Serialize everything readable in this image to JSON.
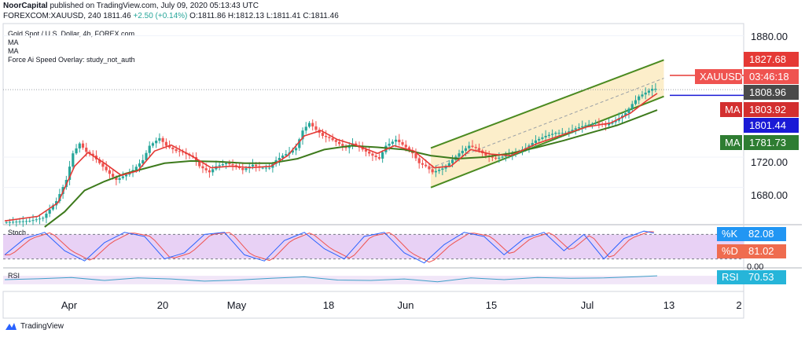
{
  "header": {
    "publisher": "NoorCapital",
    "published_text": "published on TradingView.com, July 09, 2020 05:13:43 UTC",
    "symbol_line": "FOREXCOM:XAUUSD, 240",
    "last": "1811.46",
    "change": "+2.50 (+0.14%)",
    "ohlc": "O:1811.86 H:1812.13 L:1811.41 C:1811.46"
  },
  "legend": {
    "title": "Gold Spot / U.S. Dollar, 4h, FOREX.com",
    "items": [
      "MA",
      "MA",
      "Force Ai Speed Overlay: study_not_auth"
    ]
  },
  "price_tags": [
    {
      "label": "",
      "value": "1880.00",
      "style": "axis"
    },
    {
      "label": "",
      "value": "1827.68",
      "color": "#e53935"
    },
    {
      "label": "XAUUSD",
      "value": "03:46:18",
      "color": "#ef5350"
    },
    {
      "label": "",
      "value": "1808.96",
      "color": "#4a4a4a"
    },
    {
      "label": "MA",
      "value": "1803.92",
      "color": "#d32f2f"
    },
    {
      "label": "",
      "value": "1801.44",
      "color": "#1a1ad6"
    },
    {
      "label": "MA",
      "value": "1781.73",
      "color": "#2e7d32"
    },
    {
      "label": "",
      "value": "1720.00",
      "style": "axis"
    },
    {
      "label": "",
      "value": "1680.00",
      "style": "axis"
    }
  ],
  "chart_data": {
    "type": "candlestick",
    "title": "Gold Spot / U.S. Dollar, 4h, FOREX.com",
    "x_tick_labels": [
      "Apr",
      "20",
      "May",
      "18",
      "Jun",
      "15",
      "Jul",
      "13",
      "2"
    ],
    "y_tick_labels": [
      "1880.00",
      "1720.00",
      "1680.00"
    ],
    "ylim": [
      1631,
      1896
    ],
    "close_path": [
      [
        0,
        1634
      ],
      [
        8,
        1636
      ],
      [
        12,
        1640
      ],
      [
        16,
        1662
      ],
      [
        19,
        1690
      ],
      [
        21,
        1725
      ],
      [
        23,
        1738
      ],
      [
        25,
        1727
      ],
      [
        27,
        1722
      ],
      [
        29,
        1712
      ],
      [
        32,
        1698
      ],
      [
        34,
        1690
      ],
      [
        37,
        1697
      ],
      [
        39,
        1703
      ],
      [
        42,
        1716
      ],
      [
        44,
        1735
      ],
      [
        47,
        1745
      ],
      [
        49,
        1735
      ],
      [
        52,
        1728
      ],
      [
        54,
        1726
      ],
      [
        57,
        1720
      ],
      [
        59,
        1708
      ],
      [
        62,
        1700
      ],
      [
        64,
        1708
      ],
      [
        67,
        1712
      ],
      [
        70,
        1708
      ],
      [
        72,
        1703
      ],
      [
        75,
        1710
      ],
      [
        77,
        1706
      ],
      [
        80,
        1706
      ],
      [
        82,
        1716
      ],
      [
        84,
        1722
      ],
      [
        86,
        1726
      ],
      [
        88,
        1732
      ],
      [
        90,
        1755
      ],
      [
        92,
        1765
      ],
      [
        94,
        1756
      ],
      [
        96,
        1748
      ],
      [
        98,
        1745
      ],
      [
        100,
        1740
      ],
      [
        103,
        1732
      ],
      [
        105,
        1738
      ],
      [
        108,
        1730
      ],
      [
        111,
        1722
      ],
      [
        113,
        1718
      ],
      [
        115,
        1735
      ],
      [
        118,
        1743
      ],
      [
        121,
        1733
      ],
      [
        123,
        1725
      ],
      [
        125,
        1712
      ],
      [
        127,
        1708
      ],
      [
        129,
        1700
      ],
      [
        132,
        1705
      ],
      [
        134,
        1712
      ],
      [
        137,
        1725
      ],
      [
        140,
        1735
      ],
      [
        142,
        1732
      ],
      [
        145,
        1722
      ],
      [
        148,
        1718
      ],
      [
        151,
        1722
      ],
      [
        154,
        1726
      ],
      [
        157,
        1732
      ],
      [
        160,
        1742
      ],
      [
        163,
        1748
      ],
      [
        166,
        1752
      ],
      [
        169,
        1752
      ],
      [
        172,
        1758
      ],
      [
        175,
        1762
      ],
      [
        178,
        1765
      ],
      [
        181,
        1762
      ],
      [
        184,
        1768
      ],
      [
        187,
        1778
      ],
      [
        189,
        1790
      ],
      [
        191,
        1800
      ],
      [
        193,
        1805
      ],
      [
        195,
        1810
      ]
    ],
    "ma_fast": [
      [
        0,
        1636
      ],
      [
        10,
        1642
      ],
      [
        16,
        1660
      ],
      [
        21,
        1708
      ],
      [
        25,
        1726
      ],
      [
        30,
        1712
      ],
      [
        35,
        1696
      ],
      [
        40,
        1702
      ],
      [
        45,
        1728
      ],
      [
        50,
        1736
      ],
      [
        56,
        1722
      ],
      [
        62,
        1706
      ],
      [
        68,
        1708
      ],
      [
        74,
        1706
      ],
      [
        80,
        1708
      ],
      [
        85,
        1722
      ],
      [
        90,
        1748
      ],
      [
        95,
        1755
      ],
      [
        100,
        1743
      ],
      [
        106,
        1735
      ],
      [
        112,
        1725
      ],
      [
        117,
        1735
      ],
      [
        123,
        1728
      ],
      [
        129,
        1706
      ],
      [
        134,
        1708
      ],
      [
        140,
        1730
      ],
      [
        146,
        1724
      ],
      [
        152,
        1722
      ],
      [
        160,
        1738
      ],
      [
        168,
        1750
      ],
      [
        175,
        1760
      ],
      [
        182,
        1765
      ],
      [
        188,
        1778
      ],
      [
        193,
        1795
      ],
      [
        196,
        1804
      ]
    ],
    "ma_slow": [
      [
        12,
        1628
      ],
      [
        18,
        1648
      ],
      [
        24,
        1676
      ],
      [
        30,
        1688
      ],
      [
        36,
        1698
      ],
      [
        42,
        1705
      ],
      [
        48,
        1712
      ],
      [
        56,
        1715
      ],
      [
        64,
        1714
      ],
      [
        72,
        1712
      ],
      [
        80,
        1712
      ],
      [
        88,
        1718
      ],
      [
        96,
        1730
      ],
      [
        104,
        1735
      ],
      [
        112,
        1733
      ],
      [
        120,
        1730
      ],
      [
        128,
        1722
      ],
      [
        136,
        1718
      ],
      [
        144,
        1720
      ],
      [
        152,
        1725
      ],
      [
        160,
        1733
      ],
      [
        168,
        1742
      ],
      [
        176,
        1752
      ],
      [
        184,
        1762
      ],
      [
        190,
        1772
      ],
      [
        196,
        1782
      ]
    ],
    "channel": {
      "upper": [
        [
          128,
          1732
        ],
        [
          198,
          1848
        ]
      ],
      "lower": [
        [
          128,
          1680
        ],
        [
          198,
          1800
        ]
      ],
      "mid_dashed": [
        [
          128,
          1706
        ],
        [
          198,
          1824
        ]
      ]
    },
    "horizontal_lines": [
      {
        "name": "resistance",
        "value": 1827.68
      },
      {
        "name": "support",
        "value": 1801.44
      },
      {
        "name": "last-price",
        "value": 1808.96
      }
    ],
    "indicators": [
      {
        "name": "Stoch",
        "type": "line",
        "ylim": [
          0,
          100
        ],
        "bands": [
          20,
          80
        ],
        "tag_labels": [
          "%K",
          "%D",
          "0.00"
        ],
        "tag_values": [
          "82.08",
          "81.02"
        ],
        "k": [
          [
            0,
            30
          ],
          [
            6,
            70
          ],
          [
            12,
            85
          ],
          [
            18,
            40
          ],
          [
            24,
            15
          ],
          [
            30,
            60
          ],
          [
            36,
            85
          ],
          [
            42,
            75
          ],
          [
            48,
            20
          ],
          [
            54,
            35
          ],
          [
            60,
            80
          ],
          [
            66,
            85
          ],
          [
            72,
            30
          ],
          [
            78,
            15
          ],
          [
            84,
            65
          ],
          [
            90,
            85
          ],
          [
            96,
            45
          ],
          [
            102,
            20
          ],
          [
            108,
            75
          ],
          [
            114,
            85
          ],
          [
            120,
            35
          ],
          [
            126,
            10
          ],
          [
            132,
            55
          ],
          [
            138,
            85
          ],
          [
            144,
            75
          ],
          [
            150,
            30
          ],
          [
            156,
            70
          ],
          [
            162,
            85
          ],
          [
            168,
            40
          ],
          [
            174,
            80
          ],
          [
            180,
            20
          ],
          [
            186,
            70
          ],
          [
            192,
            88
          ],
          [
            196,
            82
          ]
        ]
      },
      {
        "name": "RSI",
        "type": "line",
        "ylim": [
          0,
          100
        ],
        "bands": [
          30,
          70
        ],
        "tag_labels": [
          "RSI"
        ],
        "tag_values": [
          "70.53"
        ],
        "rsi": [
          [
            0,
            52
          ],
          [
            10,
            56
          ],
          [
            20,
            62
          ],
          [
            30,
            48
          ],
          [
            40,
            60
          ],
          [
            50,
            55
          ],
          [
            60,
            45
          ],
          [
            70,
            50
          ],
          [
            80,
            58
          ],
          [
            90,
            65
          ],
          [
            100,
            50
          ],
          [
            110,
            48
          ],
          [
            120,
            55
          ],
          [
            130,
            42
          ],
          [
            140,
            60
          ],
          [
            150,
            52
          ],
          [
            160,
            62
          ],
          [
            170,
            58
          ],
          [
            180,
            60
          ],
          [
            190,
            66
          ],
          [
            196,
            70
          ]
        ]
      }
    ]
  },
  "footer": {
    "brand": "TradingView"
  }
}
